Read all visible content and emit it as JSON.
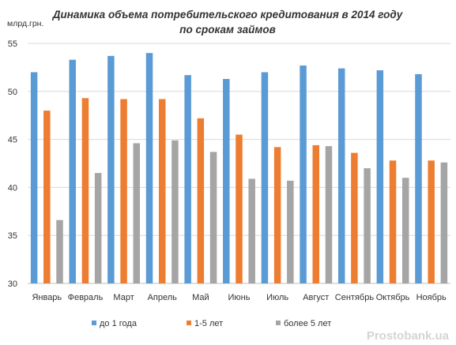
{
  "chart_data": {
    "type": "bar",
    "title_lines": [
      "Динамика объема потребительского кредитования в 2014 году",
      "по срокам займов"
    ],
    "ylabel": "млрд.грн.",
    "xlabel": "",
    "ylim": [
      30,
      55
    ],
    "yticks": [
      30,
      35,
      40,
      45,
      50,
      55
    ],
    "grid": true,
    "legend_position": "bottom",
    "categories": [
      "Январь",
      "Февраль",
      "Март",
      "Апрель",
      "Май",
      "Июнь",
      "Июль",
      "Август",
      "Сентябрь",
      "Октябрь",
      "Ноябрь"
    ],
    "series": [
      {
        "name": "до 1 года",
        "color": "#5b9bd5",
        "values": [
          52.0,
          53.3,
          53.7,
          54.0,
          51.7,
          51.3,
          52.0,
          52.7,
          52.4,
          52.2,
          51.8
        ]
      },
      {
        "name": "1-5 лет",
        "color": "#ed7d31",
        "values": [
          48.0,
          49.3,
          49.2,
          49.2,
          47.2,
          45.5,
          44.2,
          44.4,
          43.6,
          42.8,
          42.8
        ]
      },
      {
        "name": "более 5 лет",
        "color": "#a5a5a5",
        "values": [
          36.6,
          41.5,
          44.6,
          44.9,
          43.7,
          40.9,
          40.7,
          44.3,
          42.0,
          41.0,
          42.6
        ]
      }
    ]
  },
  "watermark": "Prostobank.ua"
}
